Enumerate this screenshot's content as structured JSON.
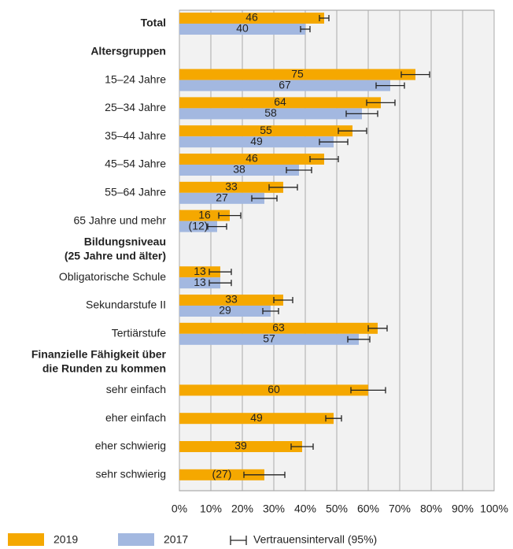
{
  "chart_data": {
    "type": "hbar_grouped_ci",
    "categories": [
      "Total",
      "Altersgruppen",
      "15–24 Jahre",
      "25–34 Jahre",
      "35–44 Jahre",
      "45–54 Jahre",
      "55–64 Jahre",
      "65 Jahre und mehr",
      "Bildungsniveau\n(25 Jahre und älter)",
      "Obligatorische Schule",
      "Sekundarstufe II",
      "Tertiärstufe",
      "Finanzielle Fähigkeit über\ndie Runden zu kommen",
      "sehr einfach",
      "eher einfach",
      "eher schwierig",
      "sehr schwierig"
    ],
    "bold_categories": [
      0,
      1,
      8,
      12
    ],
    "series": [
      {
        "name": "2019",
        "color": "#f5a800",
        "values": [
          46,
          null,
          75,
          64,
          55,
          46,
          33,
          16,
          null,
          13,
          33,
          63,
          null,
          60,
          49,
          39,
          27
        ],
        "value_labels": [
          "46",
          null,
          "75",
          "64",
          "55",
          "46",
          "33",
          "16",
          null,
          "13",
          "33",
          "63",
          null,
          "60",
          "49",
          "39",
          "(27)"
        ],
        "errors": [
          1.5,
          null,
          4.5,
          4.5,
          4.5,
          4.5,
          4.5,
          3.5,
          null,
          3.5,
          3,
          3,
          null,
          5.5,
          2.5,
          3.5,
          6.5
        ]
      },
      {
        "name": "2017",
        "color": "#a3b8e0",
        "values": [
          40,
          null,
          67,
          58,
          49,
          38,
          27,
          12,
          null,
          13,
          29,
          57,
          null,
          null,
          null,
          null,
          null
        ],
        "value_labels": [
          "40",
          null,
          "67",
          "58",
          "49",
          "38",
          "27",
          "(12)",
          null,
          "13",
          "29",
          "57",
          null,
          null,
          null,
          null,
          null
        ],
        "errors": [
          1.5,
          null,
          4.5,
          5,
          4.5,
          4,
          4,
          3,
          null,
          3.5,
          2.5,
          3.5,
          null,
          null,
          null,
          null,
          null
        ]
      }
    ],
    "ci_label": "Vertrauensintervall (95%)",
    "xlim": [
      0,
      100
    ],
    "xticks": [
      {
        "value": 0,
        "label": "0%"
      },
      {
        "value": 10,
        "label": "10%"
      },
      {
        "value": 20,
        "label": "20%"
      },
      {
        "value": 30,
        "label": "30%"
      },
      {
        "value": 40,
        "label": "40%"
      },
      {
        "value": 50,
        "label": "50%"
      },
      {
        "value": 60,
        "label": "60%"
      },
      {
        "value": 70,
        "label": "70%"
      },
      {
        "value": 80,
        "label": "80%"
      },
      {
        "value": 90,
        "label": "90%"
      },
      {
        "value": 100,
        "label": "100%"
      }
    ],
    "grid": true
  }
}
